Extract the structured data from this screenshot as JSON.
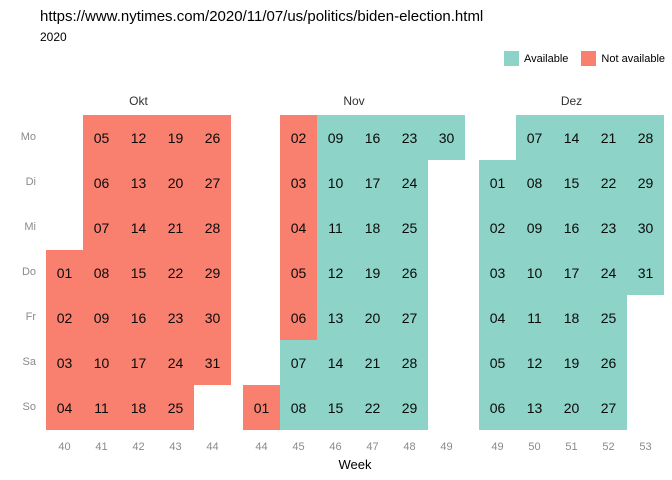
{
  "chart_data": {
    "type": "heatmap",
    "title": "https://www.nytimes.com/2020/11/07/us/politics/biden-election.html",
    "subtitle": "2020",
    "xlabel": "Week",
    "row_labels": [
      "Mo",
      "Di",
      "Mi",
      "Do",
      "Fr",
      "Sa",
      "So"
    ],
    "legend": [
      {
        "key": "a",
        "label": "Available",
        "color": "#8DD3C7"
      },
      {
        "key": "n",
        "label": "Not available",
        "color": "#F9806F"
      }
    ],
    "months": [
      {
        "name": "Okt",
        "weeks": [
          {
            "week": "40",
            "cells": [
              [
                3,
                "01",
                "n"
              ],
              [
                4,
                "02",
                "n"
              ],
              [
                5,
                "03",
                "n"
              ],
              [
                6,
                "04",
                "n"
              ]
            ]
          },
          {
            "week": "41",
            "cells": [
              [
                0,
                "05",
                "n"
              ],
              [
                1,
                "06",
                "n"
              ],
              [
                2,
                "07",
                "n"
              ],
              [
                3,
                "08",
                "n"
              ],
              [
                4,
                "09",
                "n"
              ],
              [
                5,
                "10",
                "n"
              ],
              [
                6,
                "11",
                "n"
              ]
            ]
          },
          {
            "week": "42",
            "cells": [
              [
                0,
                "12",
                "n"
              ],
              [
                1,
                "13",
                "n"
              ],
              [
                2,
                "14",
                "n"
              ],
              [
                3,
                "15",
                "n"
              ],
              [
                4,
                "16",
                "n"
              ],
              [
                5,
                "17",
                "n"
              ],
              [
                6,
                "18",
                "n"
              ]
            ]
          },
          {
            "week": "43",
            "cells": [
              [
                0,
                "19",
                "n"
              ],
              [
                1,
                "20",
                "n"
              ],
              [
                2,
                "21",
                "n"
              ],
              [
                3,
                "22",
                "n"
              ],
              [
                4,
                "23",
                "n"
              ],
              [
                5,
                "24",
                "n"
              ],
              [
                6,
                "25",
                "n"
              ]
            ]
          },
          {
            "week": "44",
            "cells": [
              [
                0,
                "26",
                "n"
              ],
              [
                1,
                "27",
                "n"
              ],
              [
                2,
                "28",
                "n"
              ],
              [
                3,
                "29",
                "n"
              ],
              [
                4,
                "30",
                "n"
              ],
              [
                5,
                "31",
                "n"
              ]
            ]
          }
        ]
      },
      {
        "name": "Nov",
        "weeks": [
          {
            "week": "44",
            "cells": [
              [
                6,
                "01",
                "n"
              ]
            ]
          },
          {
            "week": "45",
            "cells": [
              [
                0,
                "02",
                "n"
              ],
              [
                1,
                "03",
                "n"
              ],
              [
                2,
                "04",
                "n"
              ],
              [
                3,
                "05",
                "n"
              ],
              [
                4,
                "06",
                "n"
              ],
              [
                5,
                "07",
                "a"
              ],
              [
                6,
                "08",
                "a"
              ]
            ]
          },
          {
            "week": "46",
            "cells": [
              [
                0,
                "09",
                "a"
              ],
              [
                1,
                "10",
                "a"
              ],
              [
                2,
                "11",
                "a"
              ],
              [
                3,
                "12",
                "a"
              ],
              [
                4,
                "13",
                "a"
              ],
              [
                5,
                "14",
                "a"
              ],
              [
                6,
                "15",
                "a"
              ]
            ]
          },
          {
            "week": "47",
            "cells": [
              [
                0,
                "16",
                "a"
              ],
              [
                1,
                "17",
                "a"
              ],
              [
                2,
                "18",
                "a"
              ],
              [
                3,
                "19",
                "a"
              ],
              [
                4,
                "20",
                "a"
              ],
              [
                5,
                "21",
                "a"
              ],
              [
                6,
                "22",
                "a"
              ]
            ]
          },
          {
            "week": "48",
            "cells": [
              [
                0,
                "23",
                "a"
              ],
              [
                1,
                "24",
                "a"
              ],
              [
                2,
                "25",
                "a"
              ],
              [
                3,
                "26",
                "a"
              ],
              [
                4,
                "27",
                "a"
              ],
              [
                5,
                "28",
                "a"
              ],
              [
                6,
                "29",
                "a"
              ]
            ]
          },
          {
            "week": "49",
            "cells": [
              [
                0,
                "30",
                "a"
              ]
            ]
          }
        ]
      },
      {
        "name": "Dez",
        "weeks": [
          {
            "week": "49",
            "cells": [
              [
                1,
                "01",
                "a"
              ],
              [
                2,
                "02",
                "a"
              ],
              [
                3,
                "03",
                "a"
              ],
              [
                4,
                "04",
                "a"
              ],
              [
                5,
                "05",
                "a"
              ],
              [
                6,
                "06",
                "a"
              ]
            ]
          },
          {
            "week": "50",
            "cells": [
              [
                0,
                "07",
                "a"
              ],
              [
                1,
                "08",
                "a"
              ],
              [
                2,
                "09",
                "a"
              ],
              [
                3,
                "10",
                "a"
              ],
              [
                4,
                "11",
                "a"
              ],
              [
                5,
                "12",
                "a"
              ],
              [
                6,
                "13",
                "a"
              ]
            ]
          },
          {
            "week": "51",
            "cells": [
              [
                0,
                "14",
                "a"
              ],
              [
                1,
                "15",
                "a"
              ],
              [
                2,
                "16",
                "a"
              ],
              [
                3,
                "17",
                "a"
              ],
              [
                4,
                "18",
                "a"
              ],
              [
                5,
                "19",
                "a"
              ],
              [
                6,
                "20",
                "a"
              ]
            ]
          },
          {
            "week": "52",
            "cells": [
              [
                0,
                "21",
                "a"
              ],
              [
                1,
                "22",
                "a"
              ],
              [
                2,
                "23",
                "a"
              ],
              [
                3,
                "24",
                "a"
              ],
              [
                4,
                "25",
                "a"
              ],
              [
                5,
                "26",
                "a"
              ],
              [
                6,
                "27",
                "a"
              ]
            ]
          },
          {
            "week": "53",
            "cells": [
              [
                0,
                "28",
                "a"
              ],
              [
                1,
                "29",
                "a"
              ],
              [
                2,
                "30",
                "a"
              ],
              [
                3,
                "31",
                "a"
              ]
            ]
          }
        ]
      }
    ]
  }
}
